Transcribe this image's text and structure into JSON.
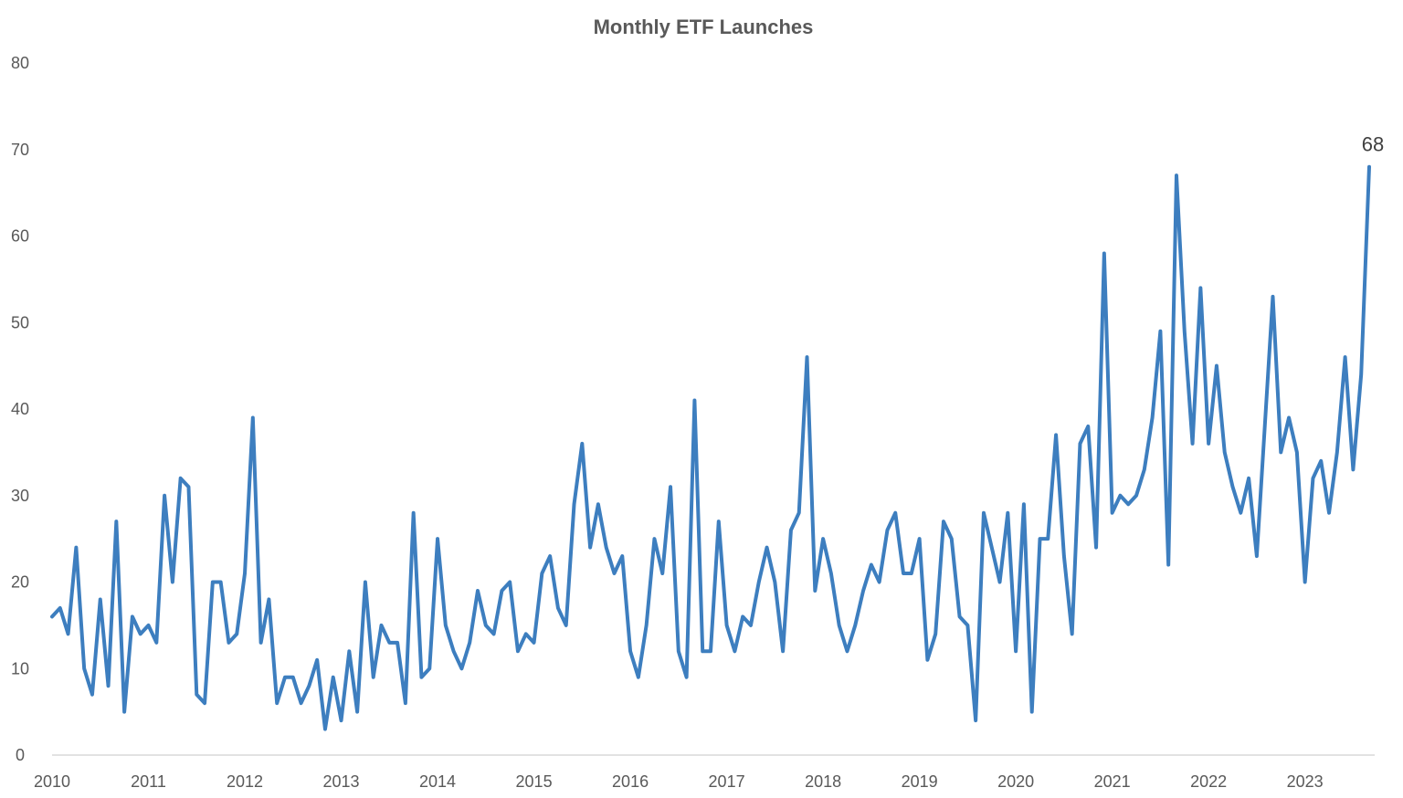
{
  "chart_data": {
    "type": "line",
    "title": "Monthly ETF Launches",
    "xlabel": "",
    "ylabel": "",
    "ylim": [
      0,
      80
    ],
    "y_ticks": [
      0,
      10,
      20,
      30,
      40,
      50,
      60,
      70,
      80
    ],
    "x_ticks": [
      "2010",
      "2011",
      "2012",
      "2013",
      "2014",
      "2015",
      "2016",
      "2017",
      "2018",
      "2019",
      "2020",
      "2021",
      "2022",
      "2023"
    ],
    "x_range": [
      "2010-01",
      "2023-09"
    ],
    "grid": false,
    "legend": "none",
    "line_color": "#3D7EBF",
    "axis_color": "#D9D9D9",
    "annotation": {
      "label": "68",
      "month": "2023-09",
      "value": 68
    },
    "series": [
      {
        "months": [
          "2010-01",
          "2010-02",
          "2010-03",
          "2010-04",
          "2010-05",
          "2010-06",
          "2010-07",
          "2010-08",
          "2010-09",
          "2010-10",
          "2010-11",
          "2010-12",
          "2011-01",
          "2011-02",
          "2011-03",
          "2011-04",
          "2011-05",
          "2011-06",
          "2011-07",
          "2011-08",
          "2011-09",
          "2011-10",
          "2011-11",
          "2011-12",
          "2012-01",
          "2012-02",
          "2012-03",
          "2012-04",
          "2012-05",
          "2012-06",
          "2012-07",
          "2012-08",
          "2012-09",
          "2012-10",
          "2012-11",
          "2012-12",
          "2013-01",
          "2013-02",
          "2013-03",
          "2013-04",
          "2013-05",
          "2013-06",
          "2013-07",
          "2013-08",
          "2013-09",
          "2013-10",
          "2013-11",
          "2013-12",
          "2014-01",
          "2014-02",
          "2014-03",
          "2014-04",
          "2014-05",
          "2014-06",
          "2014-07",
          "2014-08",
          "2014-09",
          "2014-10",
          "2014-11",
          "2014-12",
          "2015-01",
          "2015-02",
          "2015-03",
          "2015-04",
          "2015-05",
          "2015-06",
          "2015-07",
          "2015-08",
          "2015-09",
          "2015-10",
          "2015-11",
          "2015-12",
          "2016-01",
          "2016-02",
          "2016-03",
          "2016-04",
          "2016-05",
          "2016-06",
          "2016-07",
          "2016-08",
          "2016-09",
          "2016-10",
          "2016-11",
          "2016-12",
          "2017-01",
          "2017-02",
          "2017-03",
          "2017-04",
          "2017-05",
          "2017-06",
          "2017-07",
          "2017-08",
          "2017-09",
          "2017-10",
          "2017-11",
          "2017-12",
          "2018-01",
          "2018-02",
          "2018-03",
          "2018-04",
          "2018-05",
          "2018-06",
          "2018-07",
          "2018-08",
          "2018-09",
          "2018-10",
          "2018-11",
          "2018-12",
          "2019-01",
          "2019-02",
          "2019-03",
          "2019-04",
          "2019-05",
          "2019-06",
          "2019-07",
          "2019-08",
          "2019-09",
          "2019-10",
          "2019-11",
          "2019-12",
          "2020-01",
          "2020-02",
          "2020-03",
          "2020-04",
          "2020-05",
          "2020-06",
          "2020-07",
          "2020-08",
          "2020-09",
          "2020-10",
          "2020-11",
          "2020-12",
          "2021-01",
          "2021-02",
          "2021-03",
          "2021-04",
          "2021-05",
          "2021-06",
          "2021-07",
          "2021-08",
          "2021-09",
          "2021-10",
          "2021-11",
          "2021-12",
          "2022-01",
          "2022-02",
          "2022-03",
          "2022-04",
          "2022-05",
          "2022-06",
          "2022-07",
          "2022-08",
          "2022-09",
          "2022-10",
          "2022-11",
          "2022-12",
          "2023-01",
          "2023-02",
          "2023-03",
          "2023-04",
          "2023-05",
          "2023-06",
          "2023-07",
          "2023-08",
          "2023-09"
        ],
        "values": [
          16,
          17,
          14,
          24,
          10,
          7,
          18,
          8,
          27,
          5,
          16,
          14,
          15,
          13,
          30,
          20,
          32,
          31,
          7,
          6,
          20,
          20,
          13,
          14,
          21,
          39,
          13,
          18,
          6,
          9,
          9,
          6,
          8,
          11,
          3,
          9,
          4,
          12,
          5,
          20,
          9,
          15,
          13,
          13,
          6,
          28,
          9,
          10,
          25,
          15,
          12,
          10,
          13,
          19,
          15,
          14,
          19,
          20,
          12,
          14,
          13,
          21,
          23,
          17,
          15,
          29,
          36,
          24,
          29,
          24,
          21,
          23,
          12,
          9,
          15,
          25,
          21,
          31,
          12,
          9,
          41,
          12,
          12,
          27,
          15,
          12,
          16,
          15,
          20,
          24,
          20,
          12,
          26,
          28,
          46,
          19,
          25,
          21,
          15,
          12,
          15,
          19,
          22,
          20,
          26,
          28,
          21,
          21,
          25,
          11,
          14,
          27,
          25,
          16,
          15,
          4,
          28,
          24,
          20,
          28,
          12,
          29,
          5,
          25,
          25,
          37,
          23,
          14,
          36,
          38,
          24,
          58,
          28,
          30,
          29,
          30,
          33,
          39,
          49,
          22,
          67,
          49,
          36,
          54,
          36,
          45,
          35,
          31,
          28,
          32,
          23,
          38,
          53,
          35,
          39,
          35,
          20,
          32,
          34,
          28,
          35,
          46,
          33,
          44,
          68
        ]
      }
    ]
  }
}
